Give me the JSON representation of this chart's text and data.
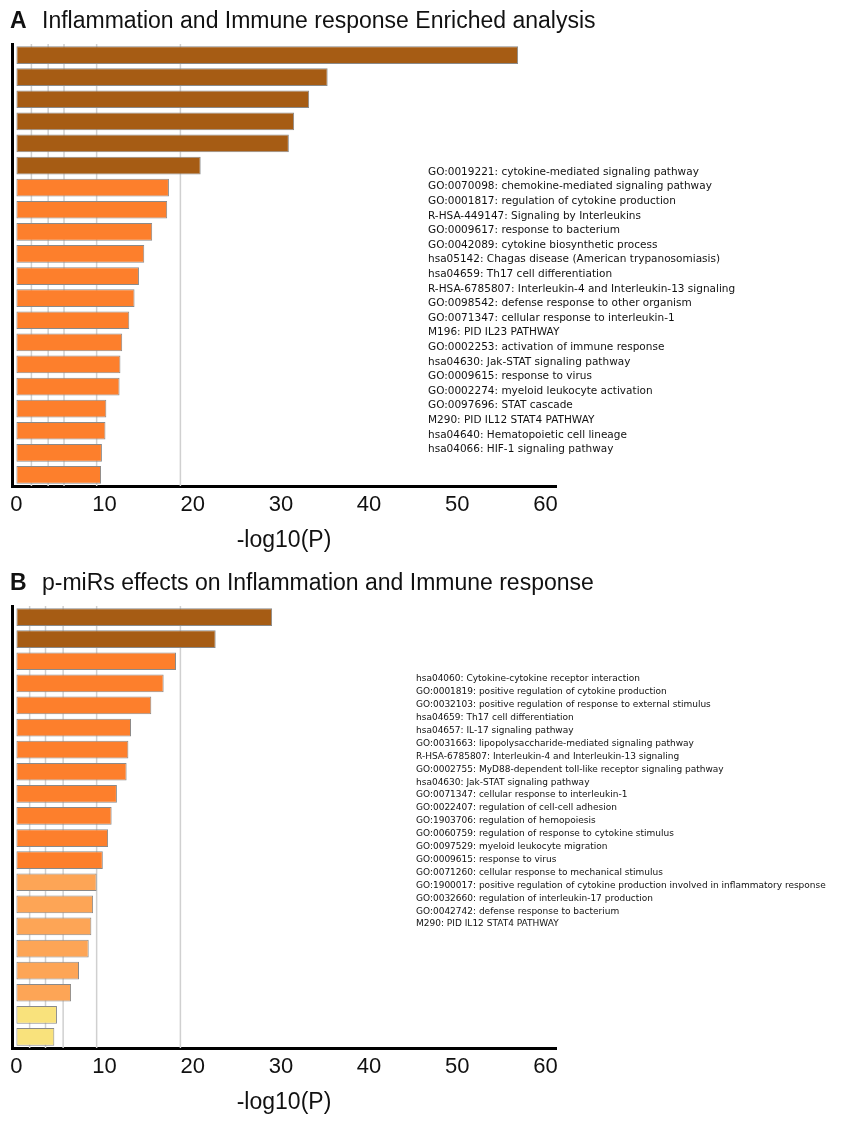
{
  "chart_data": [
    {
      "type": "bar",
      "orientation": "horizontal",
      "title": "Inflammation and Immune response Enriched analysis",
      "xlabel": "-log10(P)",
      "categories": [
        null,
        null,
        null,
        null,
        null,
        null,
        null,
        null,
        null,
        null,
        null,
        null,
        null,
        null,
        null,
        null,
        null,
        null,
        null,
        null
      ],
      "values": [
        56.9,
        35.3,
        33.2,
        31.5,
        30.9,
        20.9,
        17.3,
        17.1,
        15.4,
        14.5,
        13.9,
        13.4,
        12.8,
        12.0,
        11.8,
        11.7,
        10.2,
        10.1,
        9.7,
        9.6
      ],
      "colors": [
        "#a65c14",
        "#a65c14",
        "#a65c14",
        "#a65c14",
        "#a65c14",
        "#a65c14",
        "#fd7f2c",
        "#fd7f2c",
        "#fd7f2c",
        "#fd7f2c",
        "#fd7f2c",
        "#fd7f2c",
        "#fd7f2c",
        "#fd7f2c",
        "#fd7f2c",
        "#fd7f2c",
        "#fd7f2c",
        "#fd7f2c",
        "#fd7f2c",
        "#fd7f2c"
      ],
      "xlim": [
        -0.5,
        61.2
      ],
      "xticks": [
        0,
        10,
        20,
        30,
        40,
        50,
        60
      ],
      "grid": false,
      "ref_lines": [
        {
          "axis": "x",
          "value": 1.7,
          "color": "#d0d0d0"
        },
        {
          "axis": "x",
          "value": 3.6,
          "color": "#d0d0d0"
        },
        {
          "axis": "x",
          "value": 5.4,
          "color": "#d0d0d0"
        },
        {
          "axis": "x",
          "value": 9.1,
          "color": "#d0d0d0"
        },
        {
          "axis": "x",
          "value": 18.6,
          "color": "#d0d0d0"
        }
      ],
      "annotations": [
        "A",
        "GO:0019221: cytokine-mediated signaling pathway",
        "GO:0070098: chemokine-mediated signaling pathway",
        "GO:0001817: regulation of cytokine production",
        "R-HSA-449147: Signaling by Interleukins",
        "GO:0009617: response to bacterium",
        "GO:0042089: cytokine biosynthetic process",
        "hsa05142: Chagas disease (American trypanosomiasis)",
        "hsa04659: Th17 cell differentiation",
        "R-HSA-6785807: Interleukin-4 and Interleukin-13 signaling",
        "GO:0098542: defense response to other organism",
        "GO:0071347: cellular response to interleukin-1",
        "M196: PID IL23 PATHWAY",
        "GO:0002253: activation of immune response",
        "hsa04630: Jak-STAT signaling pathway",
        "GO:0009615: response to virus",
        "GO:0002274: myeloid leukocyte activation",
        "GO:0097696: STAT cascade",
        "M290: PID IL12 STAT4 PATHWAY",
        "hsa04640: Hematopoietic cell lineage",
        "hsa04066: HIF-1 signaling pathway"
      ]
    },
    {
      "type": "bar",
      "orientation": "horizontal",
      "title": "p-miRs effects on Inflammation and Immune response",
      "xlabel": "-log10(P)",
      "categories": [
        null,
        null,
        null,
        null,
        null,
        null,
        null,
        null,
        null,
        null,
        null,
        null,
        null,
        null,
        null,
        null,
        null,
        null,
        null,
        null
      ],
      "values": [
        29.0,
        22.6,
        18.1,
        16.7,
        15.3,
        13.0,
        12.7,
        12.5,
        11.4,
        10.8,
        10.4,
        9.8,
        9.1,
        8.7,
        8.5,
        8.2,
        7.1,
        6.2,
        4.6,
        4.3
      ],
      "colors": [
        "#a65c14",
        "#a65c14",
        "#fd7f2c",
        "#fd7f2c",
        "#fd7f2c",
        "#fd7f2c",
        "#fd7f2c",
        "#fd7f2c",
        "#fd7f2c",
        "#fd7f2c",
        "#fd7f2c",
        "#fd7f2c",
        "#fda556",
        "#fda556",
        "#fda556",
        "#fda556",
        "#fda556",
        "#fda556",
        "#f9e27c",
        "#f9e27c"
      ],
      "xlim": [
        -0.5,
        61.2
      ],
      "xticks": [
        0,
        10,
        20,
        30,
        40,
        50,
        60
      ],
      "grid": false,
      "ref_lines": [
        {
          "axis": "x",
          "value": 1.5,
          "color": "#d0d0d0"
        },
        {
          "axis": "x",
          "value": 3.3,
          "color": "#d0d0d0"
        },
        {
          "axis": "x",
          "value": 5.3,
          "color": "#d0d0d0"
        },
        {
          "axis": "x",
          "value": 9.1,
          "color": "#d0d0d0"
        },
        {
          "axis": "x",
          "value": 18.6,
          "color": "#d0d0d0"
        }
      ],
      "annotations": [
        "B",
        "hsa04060: Cytokine-cytokine receptor interaction",
        "GO:0001819: positive regulation of cytokine production",
        "GO:0032103: positive regulation of response to external stimulus",
        "hsa04659: Th17 cell differentiation",
        "hsa04657: IL-17 signaling pathway",
        "GO:0031663: lipopolysaccharide-mediated signaling pathway",
        "R-HSA-6785807: Interleukin-4 and Interleukin-13 signaling",
        "GO:0002755: MyD88-dependent toll-like receptor signaling pathway",
        "hsa04630: Jak-STAT signaling pathway",
        "GO:0071347: cellular response to interleukin-1",
        "GO:0022407: regulation of cell-cell adhesion",
        "GO:1903706: regulation of hemopoiesis",
        "GO:0060759: regulation of response to cytokine stimulus",
        "GO:0097529: myeloid leukocyte migration",
        "GO:0009615: response to virus",
        "GO:0071260: cellular response to mechanical stimulus",
        "GO:1900017: positive regulation of cytokine production involved in inflammatory response",
        "GO:0032660: regulation of interleukin-17 production",
        "GO:0042742: defense response to bacterium",
        "M290: PID IL12 STAT4 PATHWAY"
      ]
    }
  ]
}
